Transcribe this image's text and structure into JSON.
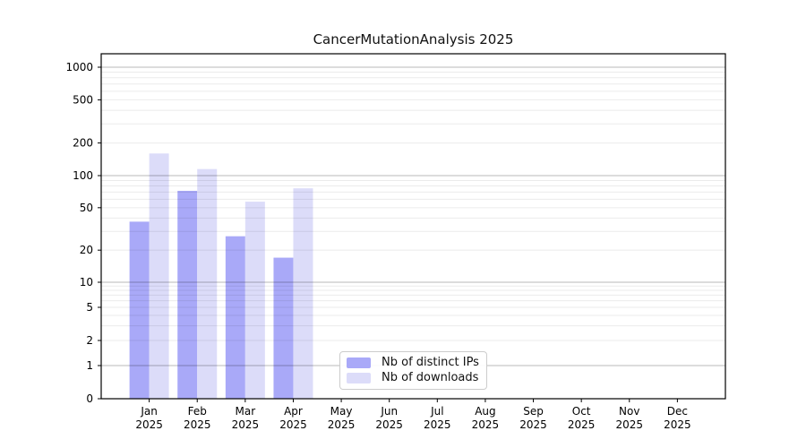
{
  "chart_data": {
    "type": "bar",
    "title": "CancerMutationAnalysis 2025",
    "categories": [
      "Jan",
      "Feb",
      "Mar",
      "Apr",
      "May",
      "Jun",
      "Jul",
      "Aug",
      "Sep",
      "Oct",
      "Nov",
      "Dec"
    ],
    "category_year_line": "2025",
    "series": [
      {
        "name": "Nb of distinct IPs",
        "color": "#a9a9f8",
        "values": [
          37,
          72,
          27,
          17,
          0,
          0,
          0,
          0,
          0,
          0,
          0,
          0
        ]
      },
      {
        "name": "Nb of downloads",
        "color": "#dcdcf9",
        "values": [
          160,
          115,
          57,
          76,
          0,
          0,
          0,
          0,
          0,
          0,
          0,
          0
        ]
      }
    ],
    "y_ticks": [
      0,
      1,
      2,
      5,
      10,
      20,
      50,
      100,
      200,
      500,
      1000
    ],
    "y_major_gridline_values": [
      1,
      10,
      100,
      1000
    ],
    "y_minor_gridline_multiples": [
      2,
      3,
      4,
      5,
      6,
      7,
      8,
      9
    ],
    "ylim": [
      0,
      1400
    ],
    "scale": "log-like with zero baseline",
    "grid": "horizontal major and minor",
    "legend_position": "bottom-center",
    "colors": {
      "axis": "#000000",
      "tick_label": "#000000",
      "grid_major": "rgba(0,0,0,0.28)",
      "grid_minor": "rgba(0,0,0,0.08)",
      "background": "#ffffff"
    }
  }
}
